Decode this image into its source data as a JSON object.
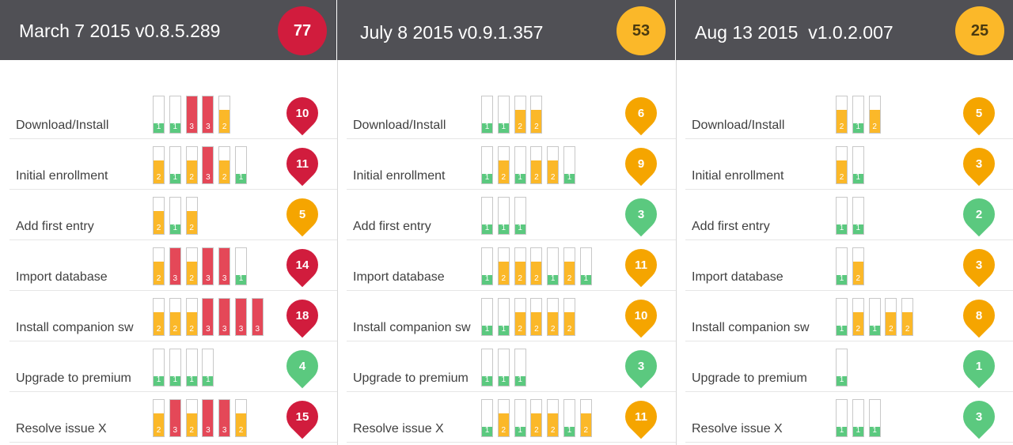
{
  "colors": {
    "green": "#5bc97f",
    "yellow": "#fbb829",
    "orange": "#f5a500",
    "red": "#e44858",
    "darkred": "#d11c3d",
    "header": "#505055"
  },
  "chart_data": {
    "type": "table",
    "columns": [
      {
        "title": "March 7 2015 v0.8.5.289",
        "total": "77",
        "total_color": "darkred",
        "rows": [
          {
            "label": "Download/Install",
            "values": [
              1,
              1,
              3,
              3,
              2
            ],
            "score": "10",
            "score_color": "darkred"
          },
          {
            "label": "Initial enrollment",
            "values": [
              2,
              1,
              2,
              3,
              2,
              1
            ],
            "score": "11",
            "score_color": "darkred"
          },
          {
            "label": "Add first entry",
            "values": [
              2,
              1,
              2
            ],
            "score": "5",
            "score_color": "orange"
          },
          {
            "label": "Import database",
            "values": [
              2,
              3,
              2,
              3,
              3,
              1
            ],
            "score": "14",
            "score_color": "darkred"
          },
          {
            "label": "Install companion sw",
            "values": [
              2,
              2,
              2,
              3,
              3,
              3,
              3
            ],
            "score": "18",
            "score_color": "darkred"
          },
          {
            "label": "Upgrade to premium",
            "values": [
              1,
              1,
              1,
              1
            ],
            "score": "4",
            "score_color": "green"
          },
          {
            "label": "Resolve issue X",
            "values": [
              2,
              3,
              2,
              3,
              3,
              2
            ],
            "score": "15",
            "score_color": "darkred"
          }
        ]
      },
      {
        "title": "July 8 2015 v0.9.1.357",
        "total": "53",
        "total_color": "yellow",
        "rows": [
          {
            "label": "Download/Install",
            "values": [
              1,
              1,
              2,
              2
            ],
            "score": "6",
            "score_color": "orange"
          },
          {
            "label": "Initial enrollment",
            "values": [
              1,
              2,
              1,
              2,
              2,
              1
            ],
            "score": "9",
            "score_color": "orange"
          },
          {
            "label": "Add first entry",
            "values": [
              1,
              1,
              1
            ],
            "score": "3",
            "score_color": "green"
          },
          {
            "label": "Import database",
            "values": [
              1,
              2,
              2,
              2,
              1,
              2,
              1
            ],
            "score": "11",
            "score_color": "orange"
          },
          {
            "label": "Install companion sw",
            "values": [
              1,
              1,
              2,
              2,
              2,
              2
            ],
            "score": "10",
            "score_color": "orange"
          },
          {
            "label": "Upgrade to premium",
            "values": [
              1,
              1,
              1
            ],
            "score": "3",
            "score_color": "green"
          },
          {
            "label": "Resolve issue X",
            "values": [
              1,
              2,
              1,
              2,
              2,
              1,
              2
            ],
            "score": "11",
            "score_color": "orange"
          }
        ]
      },
      {
        "title": "Aug 13 2015  v1.0.2.007",
        "total": "25",
        "total_color": "yellow",
        "rows": [
          {
            "label": "Download/Install",
            "values": [
              2,
              1,
              2
            ],
            "score": "5",
            "score_color": "orange"
          },
          {
            "label": "Initial enrollment",
            "values": [
              2,
              1
            ],
            "score": "3",
            "score_color": "orange"
          },
          {
            "label": "Add first entry",
            "values": [
              1,
              1
            ],
            "score": "2",
            "score_color": "green"
          },
          {
            "label": "Import database",
            "values": [
              1,
              2
            ],
            "score": "3",
            "score_color": "orange"
          },
          {
            "label": "Install companion sw",
            "values": [
              1,
              2,
              1,
              2,
              2
            ],
            "score": "8",
            "score_color": "orange"
          },
          {
            "label": "Upgrade to premium",
            "values": [
              1
            ],
            "score": "1",
            "score_color": "green"
          },
          {
            "label": "Resolve issue X",
            "values": [
              1,
              1,
              1
            ],
            "score": "3",
            "score_color": "green"
          }
        ]
      }
    ]
  }
}
